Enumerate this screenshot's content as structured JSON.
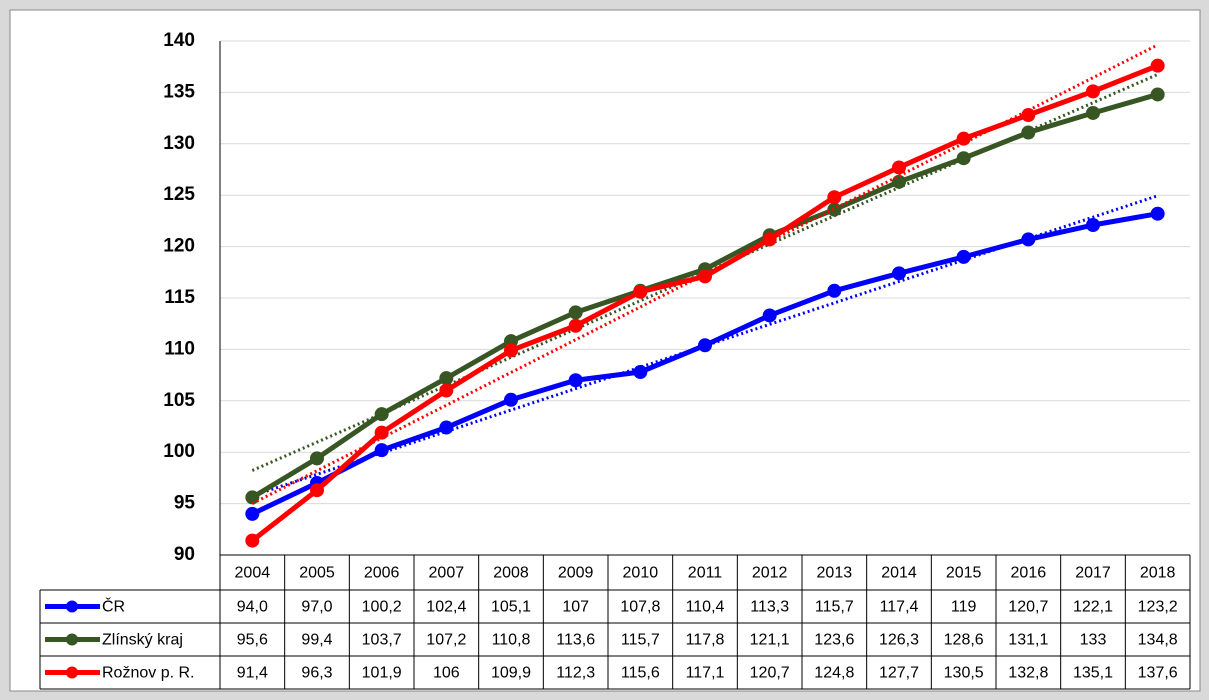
{
  "chart_data": {
    "type": "line",
    "categories": [
      "2004",
      "2005",
      "2006",
      "2007",
      "2008",
      "2009",
      "2010",
      "2011",
      "2012",
      "2013",
      "2014",
      "2015",
      "2016",
      "2017",
      "2018"
    ],
    "series": [
      {
        "name": "ČR",
        "color": "#0000ff",
        "trendline": "linear",
        "values": [
          94.0,
          97.0,
          100.2,
          102.4,
          105.1,
          107,
          107.8,
          110.4,
          113.3,
          115.7,
          117.4,
          119,
          120.7,
          122.1,
          123.2
        ],
        "value_labels": [
          "94,0",
          "97,0",
          "100,2",
          "102,4",
          "105,1",
          "107",
          "107,8",
          "110,4",
          "113,3",
          "115,7",
          "117,4",
          "119",
          "120,7",
          "122,1",
          "123,2"
        ]
      },
      {
        "name": "Zlínský kraj",
        "color": "#375623",
        "trendline": "linear",
        "values": [
          95.6,
          99.4,
          103.7,
          107.2,
          110.8,
          113.6,
          115.7,
          117.8,
          121.1,
          123.6,
          126.3,
          128.6,
          131.1,
          133,
          134.8
        ],
        "value_labels": [
          "95,6",
          "99,4",
          "103,7",
          "107,2",
          "110,8",
          "113,6",
          "115,7",
          "117,8",
          "121,1",
          "123,6",
          "126,3",
          "128,6",
          "131,1",
          "133",
          "134,8"
        ]
      },
      {
        "name": "Rožnov p. R.",
        "color": "#ff0000",
        "trendline": "linear",
        "values": [
          91.4,
          96.3,
          101.9,
          106,
          109.9,
          112.3,
          115.6,
          117.1,
          120.7,
          124.8,
          127.7,
          130.5,
          132.8,
          135.1,
          137.6
        ],
        "value_labels": [
          "91,4",
          "96,3",
          "101,9",
          "106",
          "109,9",
          "112,3",
          "115,6",
          "117,1",
          "120,7",
          "124,8",
          "127,7",
          "130,5",
          "132,8",
          "135,1",
          "137,6"
        ]
      }
    ],
    "ylim": [
      90,
      140
    ],
    "yticks": [
      90,
      95,
      100,
      105,
      110,
      115,
      120,
      125,
      130,
      135,
      140
    ],
    "grid": true,
    "data_table": true
  }
}
